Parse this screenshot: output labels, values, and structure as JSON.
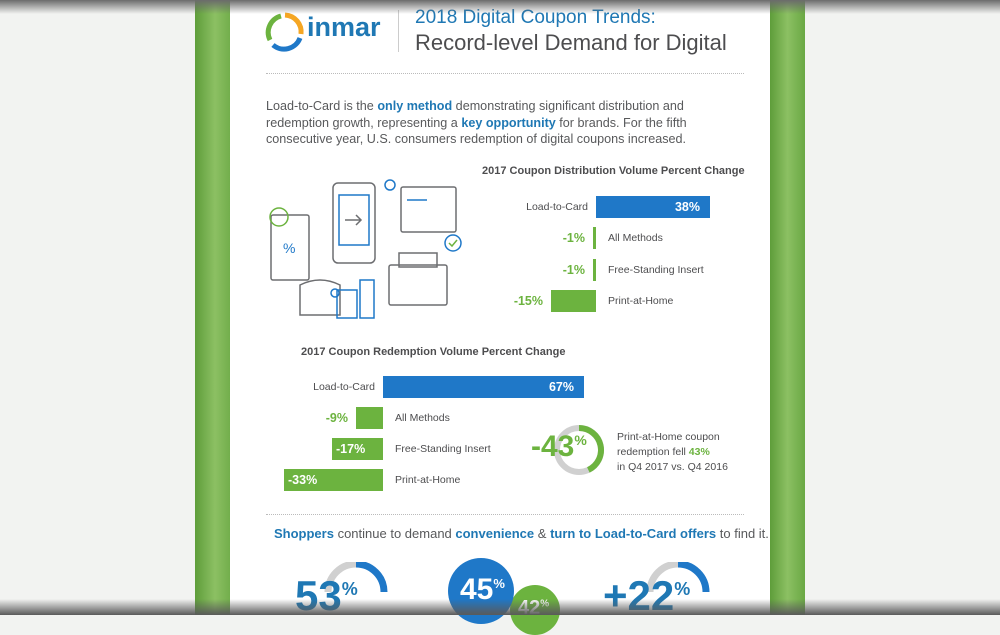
{
  "header": {
    "logo_text": "inmar",
    "title_line1": "2018 Digital Coupon Trends:",
    "title_line2": "Record-level Demand for Digital"
  },
  "intro": {
    "p1": "Load-to-Card is the ",
    "h1": "only method",
    "p2": " demonstrating significant distribution and redemption growth, representing a ",
    "h2": "key opportunity",
    "p3": " for brands. For the fifth consecutive year, U.S. consumers redemption of digital coupons increased."
  },
  "colors": {
    "blue": "#1f78c8",
    "green": "#6cb33f",
    "gray": "#d0d0d0"
  },
  "chart_data": [
    {
      "type": "bar",
      "orientation": "horizontal",
      "title": "2017 Coupon Distribution Volume Percent Change",
      "categories": [
        "Load-to-Card",
        "All Methods",
        "Free-Standing Insert",
        "Print-at-Home"
      ],
      "values": [
        38,
        -1,
        -1,
        -15
      ],
      "labels": [
        "38%",
        "-1%",
        "-1%",
        "-15%"
      ]
    },
    {
      "type": "bar",
      "orientation": "horizontal",
      "title": "2017 Coupon Redemption Volume Percent Change",
      "categories": [
        "Load-to-Card",
        "All Methods",
        "Free-Standing Insert",
        "Print-at-Home"
      ],
      "values": [
        67,
        -9,
        -17,
        -33
      ],
      "labels": [
        "67%",
        "-9%",
        "-17%",
        "-33%"
      ]
    }
  ],
  "callout": {
    "value": "-43",
    "pct": "%",
    "gauge_fraction": 0.43,
    "t1": "Print-at-Home coupon",
    "t2a": "redemption fell ",
    "t2b": "43%",
    "t3": "in Q4 2017 vs. Q4 2016"
  },
  "tagline": {
    "a": "Shoppers",
    "b": " continue to demand ",
    "c": "convenience",
    "d": " & ",
    "e": "turn to Load-to-Card offers",
    "f": " to find it."
  },
  "stats": [
    {
      "value": "53",
      "pct": "%"
    },
    {
      "value": "45",
      "pct": "%"
    },
    {
      "value": "42",
      "pct": "%"
    },
    {
      "value": "+22",
      "pct": "%"
    }
  ]
}
